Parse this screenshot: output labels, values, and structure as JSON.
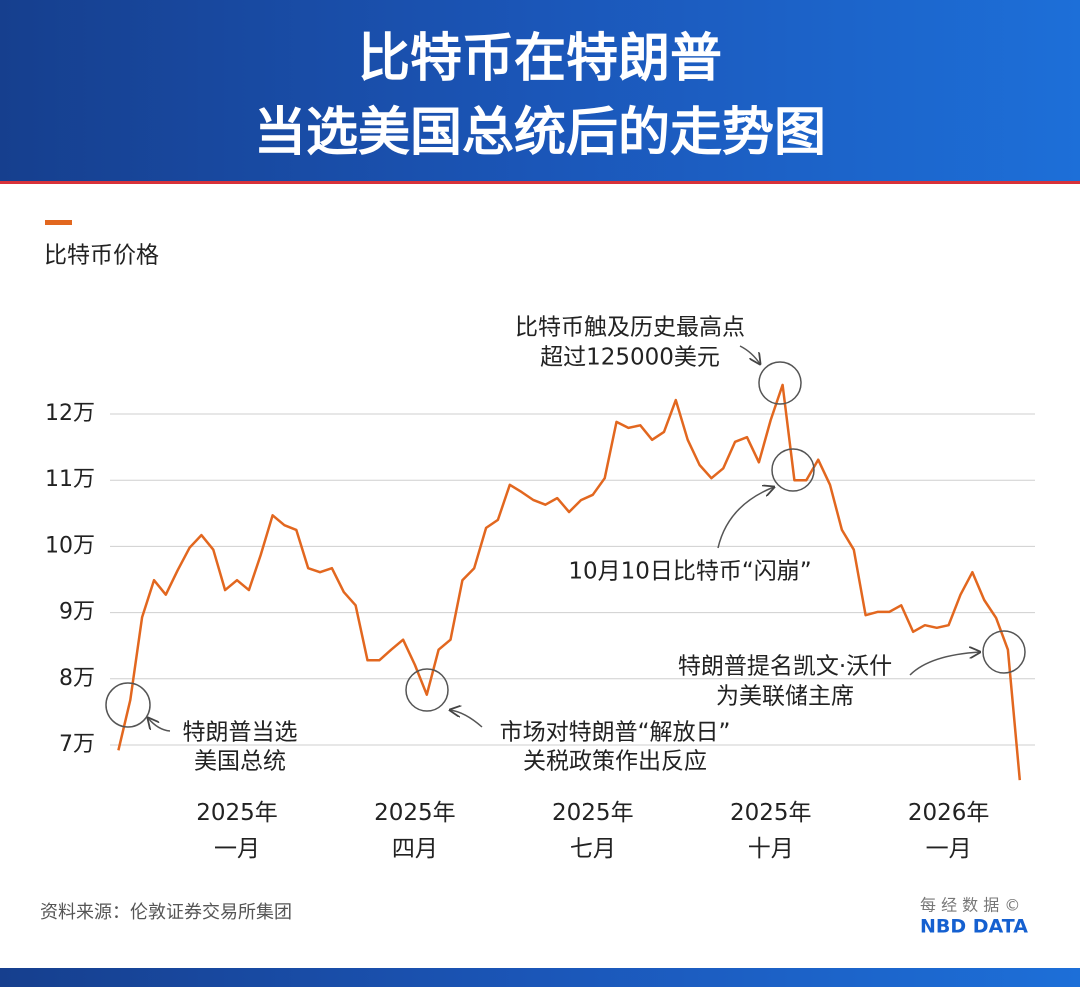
{
  "chart_data": {
    "type": "line",
    "title": [
      "比特币在特朗普",
      "当选美国总统后的走势图"
    ],
    "categories": [
      null,
      null,
      null,
      null,
      null,
      null,
      null,
      null,
      null,
      null,
      "2025年\n一月",
      null,
      null,
      null,
      null,
      null,
      null,
      null,
      null,
      null,
      null,
      null,
      null,
      null,
      null,
      "2025年\n四月",
      null,
      null,
      null,
      null,
      null,
      null,
      null,
      null,
      null,
      null,
      null,
      null,
      null,
      null,
      "2025年\n七月",
      null,
      null,
      null,
      null,
      null,
      null,
      null,
      null,
      null,
      null,
      null,
      null,
      null,
      null,
      "2025年\n十月",
      null,
      null,
      null,
      null,
      null,
      null,
      null,
      null,
      null,
      null,
      null,
      null,
      null,
      null,
      "2026年\n一月",
      null,
      null,
      null,
      null,
      null,
      null
    ],
    "series": [
      {
        "name": "比特币价格",
        "color": "#e2671f",
        "values": [
          69200,
          76800,
          89300,
          94900,
          92700,
          96400,
          99800,
          101700,
          99500,
          93400,
          94900,
          93400,
          98700,
          104700,
          103200,
          102500,
          96700,
          96100,
          96700,
          93100,
          91100,
          82800,
          82800,
          84400,
          85900,
          82100,
          77600,
          84400,
          85900,
          94900,
          96700,
          102800,
          104000,
          109300,
          108200,
          107000,
          106300,
          107300,
          105200,
          107000,
          107800,
          110300,
          118800,
          117900,
          118300,
          116100,
          117300,
          122100,
          116100,
          112300,
          110300,
          111800,
          115800,
          116500,
          112700,
          119100,
          124400,
          110000,
          110000,
          113100,
          109300,
          102500,
          99500,
          89600,
          90100,
          90100,
          91100,
          87100,
          88100,
          87700,
          88100,
          92700,
          96100,
          91900,
          89200,
          84400,
          64700
        ]
      }
    ],
    "ylim": [
      60000,
      130000
    ],
    "yticks": [
      {
        "value": 70000,
        "label": "7万"
      },
      {
        "value": 80000,
        "label": "8万"
      },
      {
        "value": 90000,
        "label": "9万"
      },
      {
        "value": 100000,
        "label": "10万"
      },
      {
        "value": 110000,
        "label": "11万"
      },
      {
        "value": 120000,
        "label": "12万"
      }
    ],
    "grid": true,
    "annotations": [
      {
        "lines": [
          "特朗普当选",
          "美国总统"
        ]
      },
      {
        "lines": [
          "市场对特朗普“解放日”",
          "关税政策作出反应"
        ]
      },
      {
        "lines": [
          "比特币触及历史最高点",
          "超过125000美元"
        ]
      },
      {
        "lines": [
          "10月10日比特币“闪崩”"
        ]
      },
      {
        "lines": [
          "特朗普提名凯文·沃什",
          "为美联储主席"
        ]
      }
    ],
    "source": "资料来源：伦敦证券交易所集团"
  },
  "branding": {
    "cn": "每 经 数 据 ©",
    "en": "NBD DATA"
  }
}
